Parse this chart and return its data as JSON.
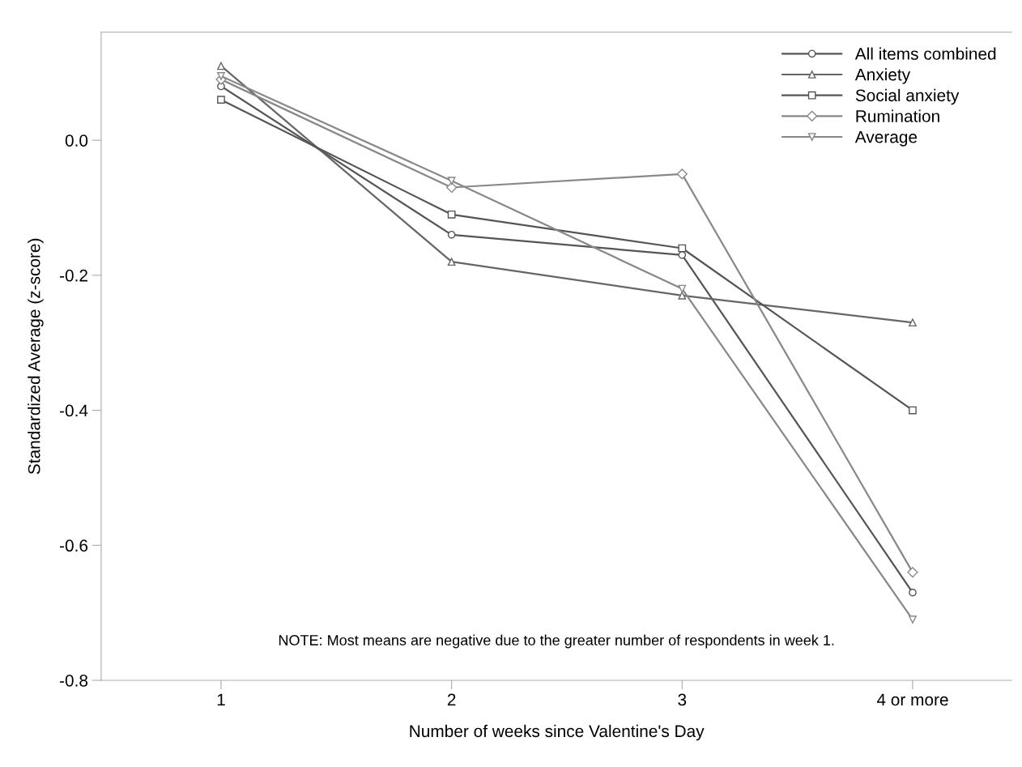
{
  "chart_data": {
    "type": "line",
    "xlabel": "Number of weeks since Valentine's Day",
    "ylabel": "Standardized Average (z-score)",
    "categories": [
      "1",
      "2",
      "3",
      "4 or more"
    ],
    "series": [
      {
        "name": "All items combined",
        "color": "#555555",
        "marker": "circle",
        "values": [
          0.08,
          -0.14,
          -0.17,
          -0.67
        ]
      },
      {
        "name": "Anxiety",
        "color": "#666666",
        "marker": "triangle",
        "values": [
          0.11,
          -0.18,
          -0.23,
          -0.27
        ]
      },
      {
        "name": "Social anxiety",
        "color": "#555555",
        "marker": "square",
        "values": [
          0.06,
          -0.11,
          -0.16,
          -0.4
        ]
      },
      {
        "name": "Rumination",
        "color": "#888888",
        "marker": "diamond",
        "values": [
          0.09,
          -0.07,
          -0.05,
          -0.64
        ]
      },
      {
        "name": "Average",
        "color": "#888888",
        "marker": "triangle_down",
        "values": [
          0.095,
          -0.06,
          -0.22,
          -0.71
        ]
      }
    ],
    "ylim": [
      -0.8,
      0.16
    ],
    "yticks": [
      {
        "value": 0,
        "label": "0.0"
      },
      {
        "value": -0.2,
        "label": "-0.2"
      },
      {
        "value": -0.4,
        "label": "-0.4"
      },
      {
        "value": -0.6,
        "label": "-0.6"
      },
      {
        "value": -0.8,
        "label": "-0.8"
      }
    ],
    "annotations": [
      "NOTE: Most means are negative due to the greater number of respondents in week 1."
    ],
    "legend": "top right",
    "grid": false
  }
}
